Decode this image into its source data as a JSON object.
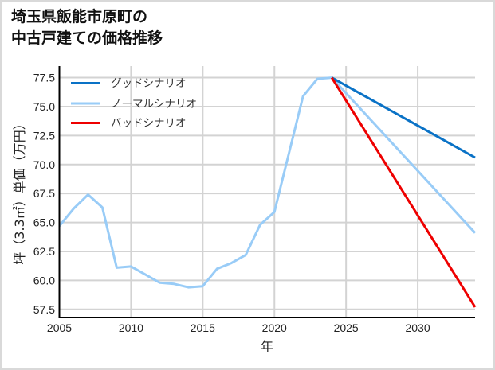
{
  "title": {
    "line1": "埼玉県飯能市原町の",
    "line2": "中古戸建ての価格推移"
  },
  "axes": {
    "xlabel": "年",
    "ylabel": "坪（3.3㎡）単価（万円）",
    "x_ticks": [
      "2005",
      "2010",
      "2015",
      "2020",
      "2025",
      "2030"
    ],
    "y_ticks": [
      "57.5",
      "60.0",
      "62.5",
      "65.0",
      "67.5",
      "70.0",
      "72.5",
      "75.0",
      "77.5"
    ]
  },
  "legend": {
    "good": "グッドシナリオ",
    "normal": "ノーマルシナリオ",
    "bad": "バッドシナリオ"
  },
  "colors": {
    "good": "#0a72c6",
    "normal": "#99ccf7",
    "bad": "#ee0000",
    "grid": "#d3d3d3",
    "axis": "#000000"
  },
  "chart_data": {
    "type": "line",
    "title": "埼玉県飯能市原町の中古戸建ての価格推移",
    "xlabel": "年",
    "ylabel": "坪（3.3㎡）単価（万円）",
    "xlim": [
      2005,
      2034
    ],
    "ylim": [
      56.8,
      78.5
    ],
    "grid": true,
    "legend_position": "upper left",
    "x_ticks": [
      2005,
      2010,
      2015,
      2020,
      2025,
      2030
    ],
    "y_ticks": [
      57.5,
      60.0,
      62.5,
      65.0,
      67.5,
      70.0,
      72.5,
      75.0,
      77.5
    ],
    "series": [
      {
        "name": "ノーマルシナリオ (実績)",
        "color": "#99ccf7",
        "x": [
          2005,
          2006,
          2007,
          2008,
          2009,
          2010,
          2011,
          2012,
          2013,
          2014,
          2015,
          2016,
          2017,
          2018,
          2019,
          2020,
          2021,
          2022,
          2023,
          2024
        ],
        "values": [
          64.7,
          66.2,
          67.4,
          66.3,
          61.1,
          61.2,
          60.5,
          59.8,
          59.7,
          59.4,
          59.5,
          61.0,
          61.5,
          62.2,
          64.8,
          65.9,
          70.9,
          75.9,
          77.4,
          77.5
        ]
      },
      {
        "name": "グッドシナリオ",
        "color": "#0a72c6",
        "x": [
          2024,
          2034
        ],
        "values": [
          77.5,
          70.6
        ]
      },
      {
        "name": "ノーマルシナリオ",
        "color": "#99ccf7",
        "x": [
          2024,
          2034
        ],
        "values": [
          77.5,
          64.1
        ]
      },
      {
        "name": "バッドシナリオ",
        "color": "#ee0000",
        "x": [
          2024,
          2034
        ],
        "values": [
          77.5,
          57.7
        ]
      }
    ]
  }
}
